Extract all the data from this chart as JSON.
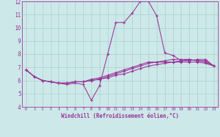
{
  "x": [
    0,
    1,
    2,
    3,
    4,
    5,
    6,
    7,
    8,
    9,
    10,
    11,
    12,
    13,
    14,
    15,
    16,
    17,
    18,
    19,
    20,
    21,
    22,
    23
  ],
  "line1": [
    6.8,
    6.3,
    6.0,
    5.9,
    5.8,
    5.7,
    5.8,
    5.7,
    4.5,
    5.6,
    8.0,
    10.4,
    10.4,
    11.1,
    12.0,
    12.0,
    10.9,
    8.1,
    7.9,
    7.5,
    7.6,
    7.5,
    7.4,
    7.1
  ],
  "line2": [
    6.8,
    6.3,
    6.0,
    5.9,
    5.8,
    5.8,
    5.9,
    5.9,
    6.0,
    6.1,
    6.2,
    6.4,
    6.5,
    6.7,
    6.9,
    7.1,
    7.2,
    7.3,
    7.4,
    7.5,
    7.5,
    7.6,
    7.6,
    7.1
  ],
  "line3": [
    6.8,
    6.3,
    6.0,
    5.9,
    5.8,
    5.8,
    5.9,
    5.9,
    6.0,
    6.1,
    6.3,
    6.5,
    6.7,
    6.9,
    7.1,
    7.3,
    7.4,
    7.5,
    7.6,
    7.6,
    7.6,
    7.5,
    7.5,
    7.1
  ],
  "line4": [
    6.8,
    6.3,
    6.0,
    5.9,
    5.8,
    5.8,
    5.9,
    5.9,
    6.1,
    6.2,
    6.4,
    6.6,
    6.8,
    7.0,
    7.2,
    7.4,
    7.4,
    7.4,
    7.4,
    7.4,
    7.4,
    7.4,
    7.3,
    7.1
  ],
  "line_color": "#993399",
  "bg_color": "#cce8e8",
  "grid_color": "#aacfcf",
  "axis_color": "#993399",
  "xlabel": "Windchill (Refroidissement éolien,°C)",
  "xlim": [
    -0.5,
    23.5
  ],
  "ylim": [
    4,
    12
  ],
  "yticks": [
    4,
    5,
    6,
    7,
    8,
    9,
    10,
    11,
    12
  ],
  "xticks": [
    0,
    1,
    2,
    3,
    4,
    5,
    6,
    7,
    8,
    9,
    10,
    11,
    12,
    13,
    14,
    15,
    16,
    17,
    18,
    19,
    20,
    21,
    22,
    23
  ],
  "marker": "+",
  "markersize": 3,
  "linewidth": 0.8
}
